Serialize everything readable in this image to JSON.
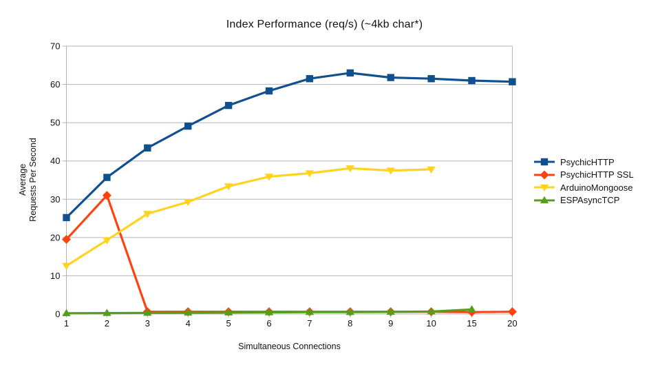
{
  "chart_data": {
    "type": "line",
    "title": "Index Performance (req/s) (~4kb char*)",
    "xlabel": "Simultaneous Connections",
    "ylabel": "Average Requests Per Second",
    "ylabel_lines": [
      "Average",
      "Requests Per Second"
    ],
    "categories": [
      "1",
      "2",
      "3",
      "4",
      "5",
      "6",
      "7",
      "8",
      "9",
      "10",
      "15",
      "20"
    ],
    "ylim": [
      0,
      70
    ],
    "yticks": [
      0,
      10,
      20,
      30,
      40,
      50,
      60,
      70
    ],
    "grid": "horizontal",
    "legend_position": "right",
    "colors": {
      "grid": "#b3b3b3",
      "axis": "#b3b3b3",
      "text": "#111111"
    },
    "series": [
      {
        "name": "PsychicHTTP",
        "color": "#11508F",
        "marker": "square",
        "values": [
          25.2,
          35.7,
          43.4,
          49.1,
          54.5,
          58.3,
          61.5,
          63.0,
          61.8,
          61.5,
          61.0,
          60.7
        ]
      },
      {
        "name": "PsychicHTTP SSL",
        "color": "#FF420E",
        "marker": "diamond",
        "values": [
          19.5,
          31.0,
          0.6,
          0.6,
          0.6,
          0.6,
          0.6,
          0.6,
          0.6,
          0.6,
          0.5,
          0.6
        ]
      },
      {
        "name": "ArduinoMongoose",
        "color": "#FFD320",
        "marker": "triangle-down",
        "values": [
          12.6,
          19.3,
          26.2,
          29.3,
          33.4,
          35.9,
          36.8,
          38.1,
          37.5,
          37.8,
          null,
          null
        ]
      },
      {
        "name": "ESPAsyncTCP",
        "color": "#579D1C",
        "marker": "triangle-up",
        "values": [
          0.2,
          0.25,
          0.3,
          0.35,
          0.4,
          0.45,
          0.5,
          0.5,
          0.55,
          0.65,
          1.2,
          null
        ]
      }
    ]
  }
}
